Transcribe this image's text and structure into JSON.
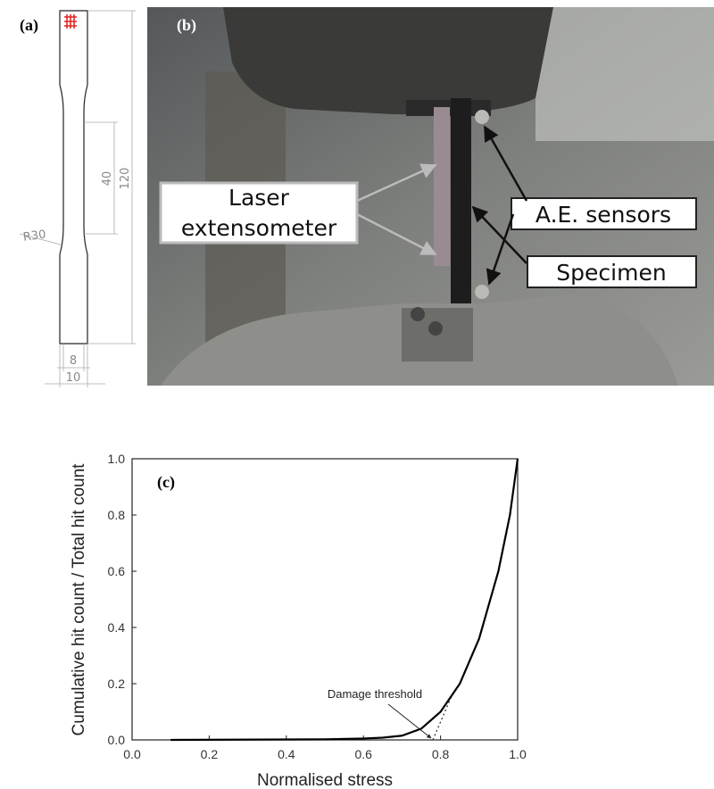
{
  "drawing": {
    "label": "(a)",
    "dimensions": {
      "length": "120",
      "gauge_length": "40",
      "gauge_width": "8",
      "width": "10",
      "radius": "R30"
    }
  },
  "photo": {
    "label": "(b)",
    "callouts": {
      "extensometer": [
        "Laser",
        "extensometer"
      ],
      "sensors": "A.E. sensors",
      "specimen": "Specimen"
    }
  },
  "chart_data": {
    "type": "line",
    "label": "(c)",
    "x_label": "Normalised stress",
    "y_label": "Cumulative hit count / Total hit count",
    "x": [
      0.1,
      0.5,
      0.6,
      0.65,
      0.7,
      0.75,
      0.8,
      0.85,
      0.9,
      0.95,
      0.98,
      1.0
    ],
    "values": [
      0,
      0.002,
      0.005,
      0.008,
      0.015,
      0.04,
      0.1,
      0.2,
      0.36,
      0.6,
      0.8,
      1.0
    ],
    "color": "#000000",
    "threshold_line": {
      "x": [
        0.78,
        0.83
      ],
      "values": [
        0,
        0.16
      ]
    },
    "annotation": {
      "text": "Damage threshold",
      "x": 0.78,
      "y": 0
    },
    "xlim": [
      0,
      1
    ],
    "ylim": [
      0,
      1
    ],
    "xticks": [
      {
        "value": 0,
        "label": "0.0"
      },
      0.2,
      0.4,
      0.6,
      0.8,
      {
        "value": 1,
        "label": "1.0"
      }
    ],
    "yticks": [
      {
        "value": 0,
        "label": "0.0"
      },
      0.2,
      0.4,
      0.6,
      0.8,
      {
        "value": 1,
        "label": "1.0"
      }
    ]
  }
}
